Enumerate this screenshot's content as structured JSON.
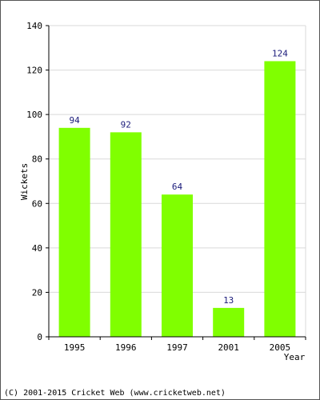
{
  "chart_data": {
    "type": "bar",
    "categories": [
      "1995",
      "1996",
      "1997",
      "2001",
      "2005"
    ],
    "values": [
      94,
      92,
      64,
      13,
      124
    ],
    "xlabel": "Year",
    "ylabel": "Wickets",
    "ylim": [
      0,
      140
    ],
    "yticks": [
      0,
      20,
      40,
      60,
      80,
      100,
      120,
      140
    ],
    "grid": true,
    "bar_color": "#80ff00",
    "label_color": "#1a1a7a"
  },
  "footer": {
    "copyright": "(C) 2001-2015 Cricket Web (www.cricketweb.net)"
  }
}
